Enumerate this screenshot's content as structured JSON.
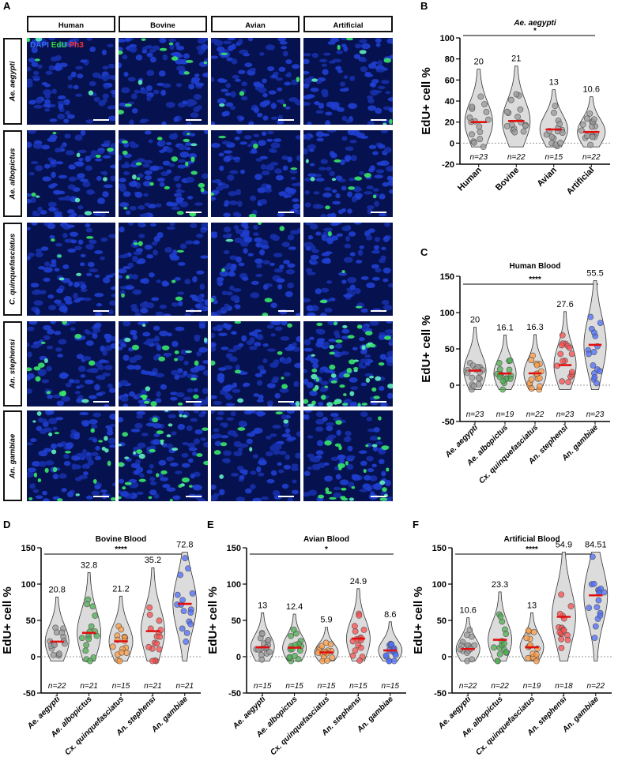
{
  "figure": {
    "panel_labels": [
      "A",
      "B",
      "C",
      "D",
      "E",
      "F"
    ]
  },
  "microscopy": {
    "columns": [
      "Human",
      "Bovine",
      "Avian",
      "Artificial"
    ],
    "rows": [
      "Ae. aegypti",
      "Ae. albopictus",
      "C. quinquefasciatus",
      "An. stephensi",
      "An. gambiae"
    ],
    "stain_legend": [
      "DAPI",
      "EdU",
      "Ph3"
    ],
    "stain_colors": [
      "#3b6bff",
      "#33dd33",
      "#ff3333"
    ]
  },
  "chart_data": [
    {
      "panel": "B",
      "type": "violin",
      "title": "Ae. aegypti",
      "ylabel": "EdU+ cell %",
      "ylim": [
        -20,
        100
      ],
      "yticks": [
        -20,
        0,
        20,
        40,
        60,
        80,
        100
      ],
      "categories": [
        "Human",
        "Bovine",
        "Avian",
        "Artificial"
      ],
      "medians": [
        20,
        21,
        13,
        10.6
      ],
      "n": [
        "n=23",
        "n=22",
        "n=15",
        "n=22"
      ],
      "significance": "*",
      "point_colors": [
        "#9a9a9a",
        "#9a9a9a",
        "#9a9a9a",
        "#9a9a9a"
      ],
      "x_rotated": true
    },
    {
      "panel": "C",
      "type": "violin",
      "title": "Human Blood",
      "ylabel": "EdU+ cell %",
      "ylim": [
        -50,
        150
      ],
      "yticks": [
        -50,
        0,
        50,
        100,
        150
      ],
      "categories": [
        "Ae. aegypti",
        "Ae. albopictus",
        "Cx. quinquefasciatus",
        "An. stephensi",
        "An. gambiae"
      ],
      "medians": [
        20,
        16.1,
        16.3,
        27.6,
        55.5
      ],
      "n": [
        "n=23",
        "n=19",
        "n=22",
        "n=23",
        "n=23"
      ],
      "significance": "****",
      "point_colors": [
        "#9a9a9a",
        "#4caf50",
        "#ff9d45",
        "#ff4d4d",
        "#4d6dff"
      ],
      "x_rotated": true
    },
    {
      "panel": "D",
      "type": "violin",
      "title": "Bovine Blood",
      "ylabel": "EdU+ cell %",
      "ylim": [
        -50,
        150
      ],
      "yticks": [
        -50,
        0,
        50,
        100,
        150
      ],
      "categories": [
        "Ae. aegypti",
        "Ae. albopictus",
        "Cx. quinquefasciatus",
        "An. stephensi",
        "An. gambiae"
      ],
      "medians": [
        20.8,
        32.8,
        21.2,
        35.2,
        72.8
      ],
      "n": [
        "n=22",
        "n=21",
        "n=15",
        "n=21",
        "n=21"
      ],
      "significance": "****",
      "point_colors": [
        "#9a9a9a",
        "#4caf50",
        "#ff9d45",
        "#ff4d4d",
        "#4d6dff"
      ],
      "x_rotated": true
    },
    {
      "panel": "E",
      "type": "violin",
      "title": "Avian Blood",
      "ylabel": "EdU+ cell %",
      "ylim": [
        -50,
        150
      ],
      "yticks": [
        -50,
        0,
        50,
        100,
        150
      ],
      "categories": [
        "Ae. aegypti",
        "Ae. albopictus",
        "Cx. quinquefasciatus",
        "An. stephensi",
        "An. gambiae"
      ],
      "medians": [
        13,
        12.4,
        5.9,
        24.9,
        8.6
      ],
      "n": [
        "n=15",
        "n=15",
        "n=15",
        "n=15",
        "n=15"
      ],
      "significance": "*",
      "point_colors": [
        "#9a9a9a",
        "#4caf50",
        "#ff9d45",
        "#ff4d4d",
        "#4d6dff"
      ],
      "x_rotated": true
    },
    {
      "panel": "F",
      "type": "violin",
      "title": "Artificial Blood",
      "ylabel": "EdU+ cell %",
      "ylim": [
        -50,
        150
      ],
      "yticks": [
        -50,
        0,
        50,
        100,
        150
      ],
      "categories": [
        "Ae. aegypti",
        "Ae. albopictus",
        "Cx. quinquefasciatus",
        "An. stephensi",
        "An. gambiae"
      ],
      "medians": [
        10.6,
        23.3,
        13,
        54.9,
        84.51
      ],
      "n": [
        "n=22",
        "n=22",
        "n=19",
        "n=18",
        "n=22"
      ],
      "significance": "****",
      "point_colors": [
        "#9a9a9a",
        "#4caf50",
        "#ff9d45",
        "#ff4d4d",
        "#4d6dff"
      ],
      "x_rotated": true
    }
  ]
}
